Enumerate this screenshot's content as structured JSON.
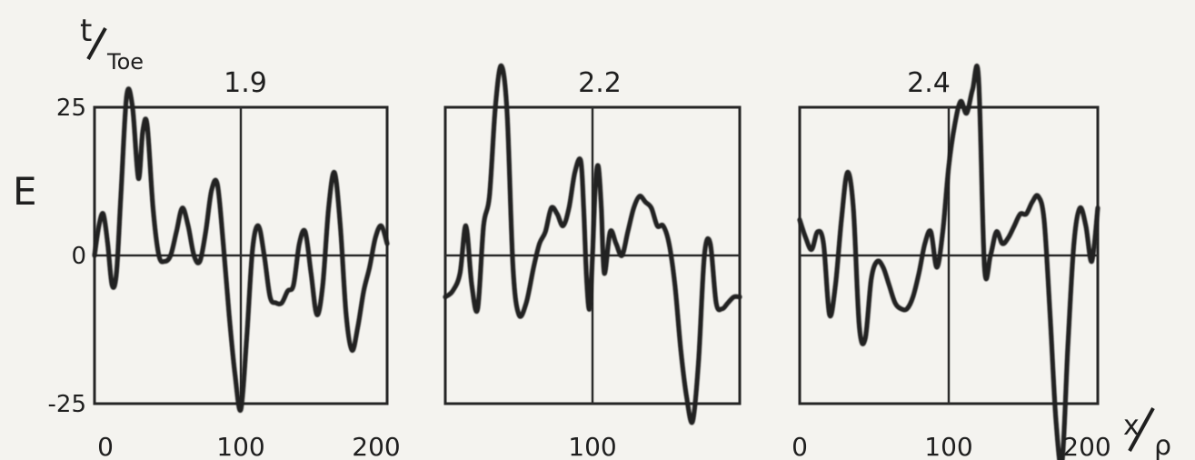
{
  "figure": {
    "y_axis_label": "E",
    "time_label_numerator": "t",
    "time_label_denominator": "Toe",
    "x_axis_label_numerator": "x",
    "x_axis_label_denominator": "ρ"
  },
  "chart_data": [
    {
      "type": "line",
      "title": "1.9",
      "xlim": [
        0,
        200
      ],
      "ylim": [
        -25,
        25
      ],
      "yticks": [
        "25",
        "0",
        "-25"
      ],
      "xticks": [
        "0",
        "100",
        "200"
      ],
      "grid": "vertical line at x=100, horizontal line at y=0",
      "series": [
        {
          "x": [
            0,
            3,
            6,
            9,
            12,
            15,
            18,
            22,
            26,
            30,
            33,
            36,
            40,
            44,
            48,
            52,
            56,
            60,
            64,
            68,
            72,
            76,
            80,
            84,
            88,
            92,
            96,
            100,
            104,
            108,
            112,
            116,
            120,
            124,
            128,
            132,
            136,
            140,
            144,
            148,
            152,
            156,
            160,
            164,
            168,
            172,
            176,
            180,
            184,
            188,
            192,
            196,
            200
          ],
          "y": [
            0,
            5,
            7,
            2,
            -5,
            -3,
            10,
            27,
            25,
            13,
            21,
            22,
            8,
            0,
            -1,
            0,
            4,
            8,
            5,
            0,
            -1,
            4,
            11,
            12,
            2,
            -10,
            -20,
            -26,
            -14,
            1,
            5,
            0,
            -7,
            -8,
            -8,
            -6,
            -5,
            2,
            4,
            -3,
            -10,
            -5,
            8,
            14,
            5,
            -10,
            -16,
            -12,
            -6,
            -2,
            3,
            5,
            2
          ]
        }
      ]
    },
    {
      "type": "line",
      "title": "2.2",
      "xlim": [
        0,
        200
      ],
      "ylim": [
        -25,
        25
      ],
      "yticks": [],
      "xticks": [
        "100"
      ],
      "grid": "vertical line at x=100, horizontal line at y=0",
      "series": [
        {
          "x": [
            0,
            5,
            10,
            14,
            18,
            22,
            26,
            30,
            34,
            38,
            42,
            46,
            50,
            55,
            60,
            64,
            68,
            72,
            76,
            80,
            84,
            88,
            92,
            94,
            96,
            98,
            100,
            102,
            104,
            106,
            108,
            112,
            116,
            120,
            124,
            128,
            132,
            136,
            140,
            144,
            148,
            152,
            156,
            160,
            164,
            168,
            172,
            176,
            180,
            184,
            188,
            192,
            196,
            200
          ],
          "y": [
            -7,
            -6,
            -3,
            5,
            -5,
            -9,
            5,
            10,
            25,
            32,
            24,
            -2,
            -10,
            -8,
            -2,
            2,
            4,
            8,
            7,
            5,
            8,
            14,
            16,
            8,
            -4,
            -9,
            0,
            12,
            15,
            8,
            -3,
            4,
            2,
            0,
            4,
            8,
            10,
            9,
            8,
            5,
            5,
            2,
            -5,
            -16,
            -24,
            -28,
            -18,
            0,
            2,
            -8,
            -9,
            -8,
            -7,
            -7
          ]
        }
      ]
    },
    {
      "type": "line",
      "title": "2.4",
      "xlim": [
        0,
        200
      ],
      "ylim": [
        -25,
        25
      ],
      "yticks": [],
      "xticks": [
        "0",
        "100",
        "200"
      ],
      "grid": "vertical line at x=100, horizontal line at y=0",
      "series": [
        {
          "x": [
            0,
            4,
            8,
            12,
            16,
            20,
            24,
            28,
            32,
            36,
            40,
            44,
            48,
            52,
            56,
            60,
            64,
            68,
            72,
            76,
            80,
            84,
            88,
            92,
            96,
            100,
            104,
            108,
            112,
            116,
            120,
            124,
            128,
            132,
            136,
            140,
            144,
            148,
            152,
            156,
            160,
            164,
            168,
            172,
            176,
            180,
            184,
            188,
            192,
            196,
            200
          ],
          "y": [
            6,
            3,
            1,
            4,
            2,
            -10,
            -5,
            6,
            14,
            8,
            -12,
            -14,
            -4,
            -1,
            -2,
            -5,
            -8,
            -9,
            -9,
            -7,
            -3,
            2,
            4,
            -2,
            4,
            15,
            22,
            26,
            24,
            28,
            30,
            -2,
            0,
            4,
            2,
            3,
            5,
            7,
            7,
            9,
            10,
            6,
            -10,
            -28,
            -35,
            -15,
            2,
            8,
            5,
            -1,
            8
          ]
        }
      ]
    }
  ]
}
